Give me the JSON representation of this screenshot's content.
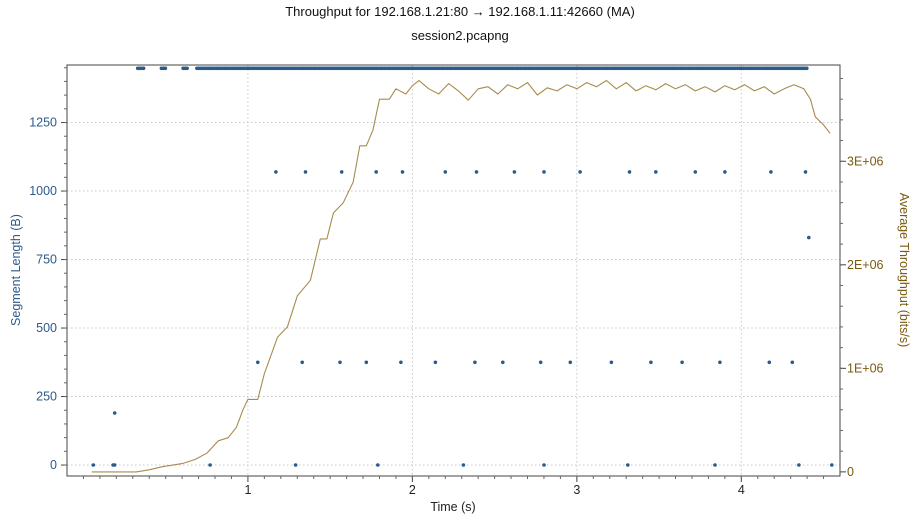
{
  "chart_data": {
    "type": "scatter",
    "title": "Throughput for 192.168.1.21:80 → 192.168.1.11:42660 (MA)",
    "subtitle": "session2.pcapng",
    "xlabel": "Time (s)",
    "ylabel_left": "Segment Length (B)",
    "ylabel_right": "Average Throughput (bits/s)",
    "xlim": [
      -0.1,
      4.6
    ],
    "ylim_left": [
      -40,
      1460
    ],
    "ylim_right": [
      -40000,
      3930000
    ],
    "x_ticks": [
      1,
      2,
      3,
      4
    ],
    "x_tick_labels": [
      "1",
      "2",
      "3",
      "4"
    ],
    "left_ticks": [
      0,
      250,
      500,
      750,
      1000,
      1250
    ],
    "left_tick_labels": [
      "0",
      "250",
      "500",
      "750",
      "1000",
      "1250"
    ],
    "right_ticks": [
      0,
      1000000,
      2000000,
      3000000
    ],
    "right_tick_labels": [
      "0",
      "1E+06",
      "2E+06",
      "3E+06"
    ],
    "grid": true,
    "colors": {
      "segments": "#2b5b8a",
      "throughput": "#a88b4c",
      "left_axis": "#2b5b8a",
      "right_axis": "#7a5a10"
    },
    "segment_series": {
      "name": "Segment Length",
      "points": [
        [
          0.06,
          0
        ],
        [
          0.18,
          0
        ],
        [
          0.19,
          0
        ],
        [
          0.77,
          0
        ],
        [
          1.29,
          0
        ],
        [
          1.79,
          0
        ],
        [
          2.31,
          0
        ],
        [
          2.8,
          0
        ],
        [
          3.31,
          0
        ],
        [
          3.84,
          0
        ],
        [
          4.35,
          0
        ],
        [
          4.55,
          0
        ],
        [
          0.19,
          190
        ],
        [
          1.06,
          375
        ],
        [
          1.33,
          375
        ],
        [
          1.56,
          375
        ],
        [
          1.72,
          375
        ],
        [
          1.93,
          375
        ],
        [
          2.14,
          375
        ],
        [
          2.38,
          375
        ],
        [
          2.55,
          375
        ],
        [
          2.78,
          375
        ],
        [
          2.96,
          375
        ],
        [
          3.21,
          375
        ],
        [
          3.45,
          375
        ],
        [
          3.64,
          375
        ],
        [
          3.87,
          375
        ],
        [
          4.17,
          375
        ],
        [
          4.31,
          375
        ],
        [
          4.41,
          830
        ],
        [
          1.17,
          1070
        ],
        [
          1.35,
          1070
        ],
        [
          1.57,
          1070
        ],
        [
          1.78,
          1070
        ],
        [
          1.94,
          1070
        ],
        [
          2.2,
          1070
        ],
        [
          2.39,
          1070
        ],
        [
          2.62,
          1070
        ],
        [
          2.8,
          1070
        ],
        [
          3.02,
          1070
        ],
        [
          3.32,
          1070
        ],
        [
          3.48,
          1070
        ],
        [
          3.72,
          1070
        ],
        [
          3.9,
          1070
        ],
        [
          4.18,
          1070
        ],
        [
          4.39,
          1070
        ]
      ],
      "dense_band": {
        "y": 1448,
        "x_start": 0.33,
        "x_end": 4.4,
        "gaps": [
          [
            0.37,
            0.47
          ],
          [
            0.5,
            0.6
          ],
          [
            0.64,
            0.69
          ]
        ]
      }
    },
    "throughput_series": {
      "name": "Average Throughput",
      "points": [
        [
          0.05,
          0
        ],
        [
          0.32,
          0
        ],
        [
          0.4,
          20000
        ],
        [
          0.48,
          50000
        ],
        [
          0.6,
          80000
        ],
        [
          0.68,
          120000
        ],
        [
          0.75,
          180000
        ],
        [
          0.82,
          300000
        ],
        [
          0.88,
          330000
        ],
        [
          0.93,
          430000
        ],
        [
          0.97,
          600000
        ],
        [
          1.0,
          700000
        ],
        [
          1.06,
          700000
        ],
        [
          1.1,
          950000
        ],
        [
          1.18,
          1300000
        ],
        [
          1.24,
          1400000
        ],
        [
          1.3,
          1700000
        ],
        [
          1.38,
          1850000
        ],
        [
          1.44,
          2250000
        ],
        [
          1.48,
          2250000
        ],
        [
          1.52,
          2500000
        ],
        [
          1.58,
          2600000
        ],
        [
          1.64,
          2800000
        ],
        [
          1.68,
          3150000
        ],
        [
          1.72,
          3150000
        ],
        [
          1.76,
          3300000
        ],
        [
          1.8,
          3600000
        ],
        [
          1.86,
          3600000
        ],
        [
          1.9,
          3700000
        ],
        [
          1.96,
          3650000
        ],
        [
          2.0,
          3730000
        ],
        [
          2.04,
          3780000
        ],
        [
          2.1,
          3700000
        ],
        [
          2.16,
          3650000
        ],
        [
          2.22,
          3750000
        ],
        [
          2.28,
          3680000
        ],
        [
          2.34,
          3590000
        ],
        [
          2.4,
          3700000
        ],
        [
          2.46,
          3720000
        ],
        [
          2.52,
          3650000
        ],
        [
          2.58,
          3740000
        ],
        [
          2.64,
          3700000
        ],
        [
          2.7,
          3760000
        ],
        [
          2.76,
          3640000
        ],
        [
          2.82,
          3710000
        ],
        [
          2.88,
          3680000
        ],
        [
          2.94,
          3740000
        ],
        [
          3.0,
          3700000
        ],
        [
          3.06,
          3760000
        ],
        [
          3.12,
          3720000
        ],
        [
          3.18,
          3780000
        ],
        [
          3.24,
          3700000
        ],
        [
          3.3,
          3760000
        ],
        [
          3.36,
          3680000
        ],
        [
          3.42,
          3730000
        ],
        [
          3.48,
          3690000
        ],
        [
          3.54,
          3750000
        ],
        [
          3.6,
          3700000
        ],
        [
          3.66,
          3740000
        ],
        [
          3.72,
          3680000
        ],
        [
          3.78,
          3720000
        ],
        [
          3.84,
          3670000
        ],
        [
          3.9,
          3730000
        ],
        [
          3.96,
          3690000
        ],
        [
          4.02,
          3740000
        ],
        [
          4.08,
          3680000
        ],
        [
          4.14,
          3720000
        ],
        [
          4.2,
          3650000
        ],
        [
          4.26,
          3700000
        ],
        [
          4.32,
          3740000
        ],
        [
          4.38,
          3700000
        ],
        [
          4.42,
          3600000
        ],
        [
          4.45,
          3430000
        ],
        [
          4.5,
          3350000
        ],
        [
          4.54,
          3270000
        ]
      ]
    }
  }
}
